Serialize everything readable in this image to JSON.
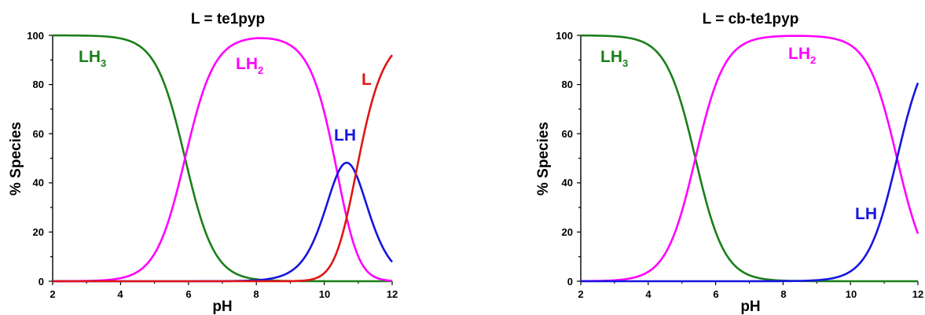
{
  "chart_data": [
    {
      "type": "line",
      "title": "L = te1pyp",
      "xlabel": "pH",
      "ylabel": "% Species",
      "xlim": [
        2,
        12
      ],
      "ylim": [
        0,
        100
      ],
      "xticks": [
        "2",
        "4",
        "6",
        "8",
        "10",
        "12"
      ],
      "yticks": [
        "0",
        "20",
        "40",
        "60",
        "80",
        "100"
      ],
      "grid": false,
      "legend": "none",
      "pKa": [
        10.93,
        10.39,
        5.9
      ],
      "series": [
        {
          "base": "LH",
          "sub": "3",
          "color": "#1a7f1a",
          "x": [
            2,
            3,
            4,
            4.5,
            5,
            5.5,
            5.9,
            6.5,
            7,
            7.5,
            8,
            9,
            10,
            12
          ],
          "y": [
            100,
            99.9,
            98.8,
            96.3,
            88.8,
            71.5,
            50,
            19.7,
            7.3,
            2.4,
            0.8,
            0.1,
            0,
            0
          ]
        },
        {
          "base": "LH",
          "sub": "2",
          "color": "#ff00ff",
          "x": [
            2,
            4,
            5,
            5.5,
            5.9,
            6.5,
            7,
            8,
            9,
            9.5,
            10,
            10.5,
            11,
            11.5,
            12
          ],
          "y": [
            0,
            1.2,
            11.2,
            28.5,
            50,
            80.2,
            92.5,
            98.8,
            95.5,
            87.5,
            67.4,
            35.1,
            12.7,
            3.6,
            0.9
          ]
        },
        {
          "base": "LH",
          "sub": "",
          "color": "#1515e0",
          "x": [
            2,
            8,
            9,
            9.5,
            10,
            10.4,
            10.67,
            11,
            11.5,
            12
          ],
          "y": [
            0,
            0.4,
            4,
            11.4,
            27.3,
            46,
            54,
            46.6,
            28.8,
            9.4
          ]
        },
        {
          "base": "L",
          "sub": "",
          "color": "#e01515",
          "x": [
            2,
            9.5,
            10,
            10.5,
            10.93,
            11,
            11.5,
            12
          ],
          "y": [
            0,
            1.1,
            5.3,
            18.7,
            35.2,
            40.7,
            67.6,
            89.7
          ]
        }
      ]
    },
    {
      "type": "line",
      "title": "L = cb-te1pyp",
      "xlabel": "pH",
      "ylabel": "% Species",
      "xlim": [
        2,
        12
      ],
      "ylim": [
        0,
        100
      ],
      "xticks": [
        "2",
        "4",
        "6",
        "8",
        "10",
        "12"
      ],
      "yticks": [
        "0",
        "20",
        "40",
        "60",
        "80",
        "100"
      ],
      "grid": false,
      "legend": "none",
      "pKa": [
        11.38,
        5.4
      ],
      "series": [
        {
          "base": "LH",
          "sub": "3",
          "color": "#1a7f1a",
          "x": [
            2,
            3,
            4,
            4.5,
            5,
            5.4,
            6,
            6.5,
            7,
            8,
            9,
            12
          ],
          "y": [
            100,
            99.6,
            96.2,
            88.8,
            71.5,
            50,
            20.1,
            7.4,
            2.5,
            0.3,
            0,
            0
          ]
        },
        {
          "base": "LH",
          "sub": "2",
          "color": "#ff00ff",
          "x": [
            2,
            3,
            4,
            4.5,
            5,
            5.4,
            6,
            6.5,
            7,
            8,
            9,
            10,
            10.5,
            11,
            11.38,
            11.5,
            12
          ],
          "y": [
            0,
            0.4,
            3.8,
            11.2,
            28.5,
            50,
            79.9,
            92.6,
            97.5,
            99.7,
            99.6,
            96,
            88.3,
            70.5,
            50,
            43.1,
            19.4
          ]
        },
        {
          "base": "LH",
          "sub": "",
          "color": "#1515e0",
          "x": [
            2,
            8,
            9,
            10,
            10.5,
            11,
            11.38,
            11.5,
            12
          ],
          "y": [
            0,
            0,
            0.4,
            4,
            11.7,
            29.5,
            50,
            56.9,
            80.6
          ]
        }
      ]
    }
  ]
}
